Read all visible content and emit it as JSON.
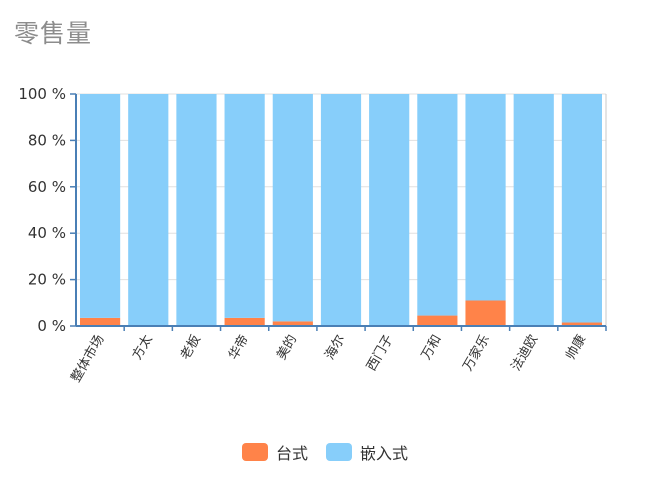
{
  "title": "零售量",
  "chart_data": {
    "type": "bar",
    "stacked": true,
    "categories": [
      "整体市场",
      "方太",
      "老板",
      "华帝",
      "美的",
      "海尔",
      "西门子",
      "万和",
      "万家乐",
      "法迪欧",
      "帅康"
    ],
    "series": [
      {
        "name": "台式",
        "color": "#ff8349",
        "values": [
          3.5,
          0,
          0,
          3.5,
          2,
          0,
          0,
          4.5,
          11,
          0,
          1.5
        ]
      },
      {
        "name": "嵌入式",
        "color": "#87cefa",
        "values": [
          96.5,
          100,
          100,
          96.5,
          98,
          100,
          100,
          95.5,
          89,
          100,
          98.5
        ]
      }
    ],
    "y_ticks": [
      "0 %",
      "20 %",
      "40 %",
      "60 %",
      "80 %",
      "100 %"
    ],
    "ylim": [
      0,
      100
    ],
    "grid": true,
    "legend_position": "bottom"
  }
}
